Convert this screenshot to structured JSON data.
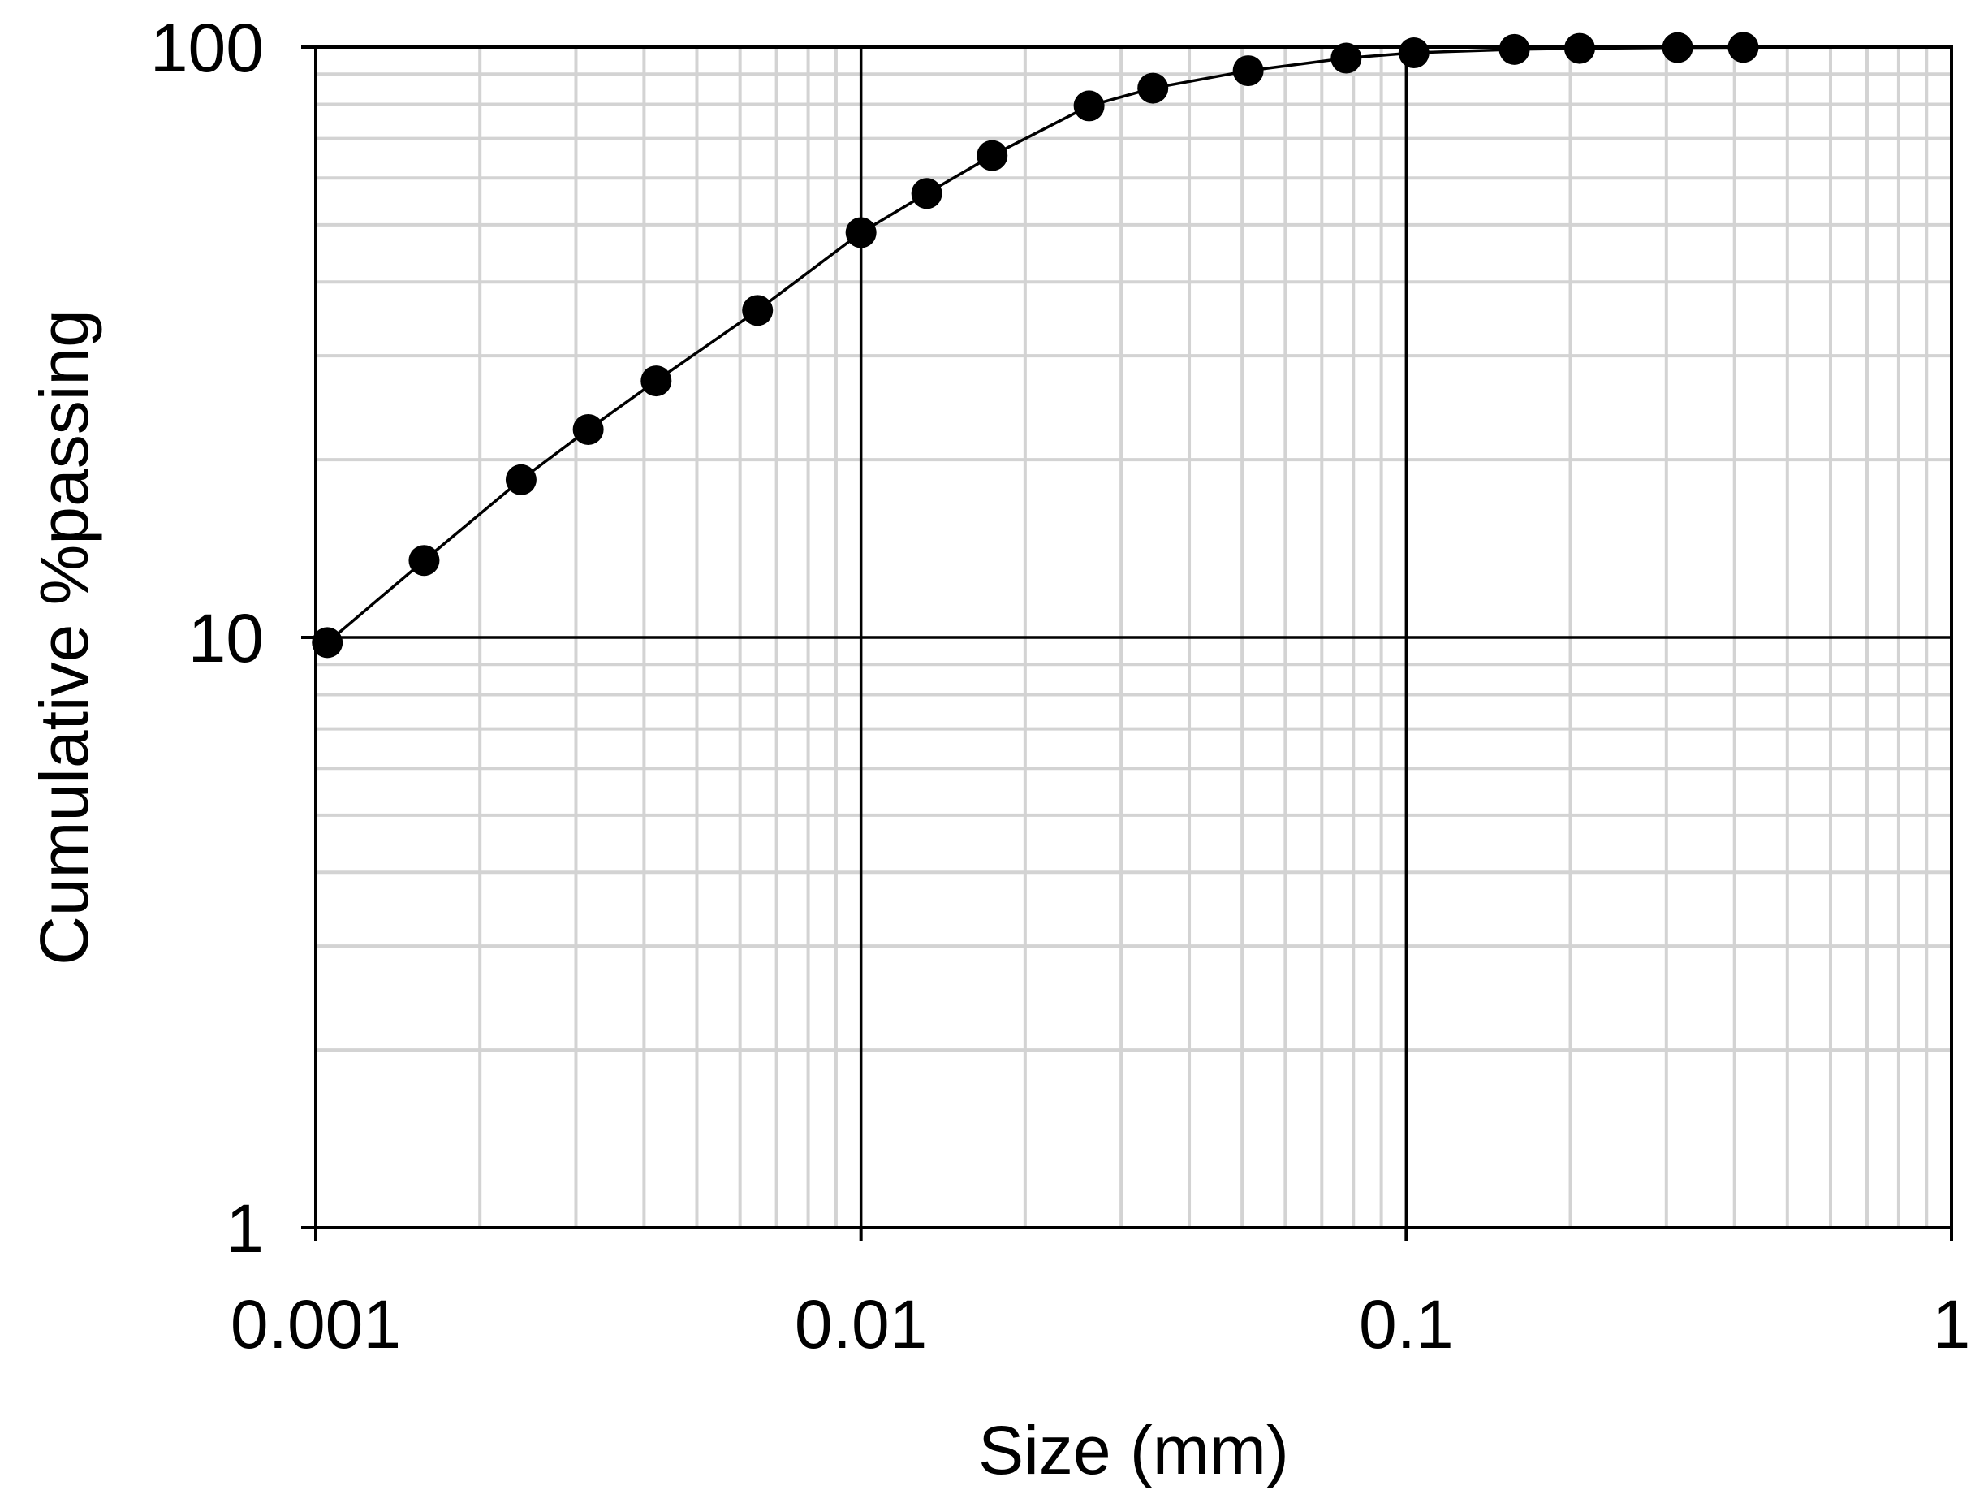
{
  "chart_data": {
    "type": "scatter",
    "x_scale": "log",
    "y_scale": "log",
    "xlim": [
      0.001,
      1
    ],
    "ylim": [
      1,
      100
    ],
    "xlabel": "Size (mm)",
    "ylabel": "Cumulative %passing",
    "x_ticks": [
      {
        "value": 0.001,
        "label": "0.001"
      },
      {
        "value": 0.01,
        "label": "0.01"
      },
      {
        "value": 0.1,
        "label": "0.1"
      },
      {
        "value": 1,
        "label": "1"
      }
    ],
    "y_ticks": [
      {
        "value": 1,
        "label": "1"
      },
      {
        "value": 10,
        "label": "10"
      },
      {
        "value": 100,
        "label": "100"
      }
    ],
    "grid": true,
    "minor_grid": true,
    "marker": "filled-circle",
    "line_color": "#000000",
    "marker_color": "#000000",
    "grid_color": "#d3d3d3",
    "series": [
      {
        "x": [
          0.00105,
          0.00158,
          0.00238,
          0.00316,
          0.00421,
          0.00646,
          0.01,
          0.0132,
          0.0174,
          0.0262,
          0.0343,
          0.0513,
          0.0776,
          0.1033,
          0.1579,
          0.208,
          0.3145,
          0.415
        ],
        "y": [
          9.8,
          13.5,
          18.5,
          22.5,
          27.2,
          35.8,
          48.5,
          56.5,
          65.5,
          79.5,
          85.2,
          91.2,
          95.8,
          97.8,
          99.1,
          99.5,
          99.8,
          99.9
        ]
      }
    ]
  }
}
